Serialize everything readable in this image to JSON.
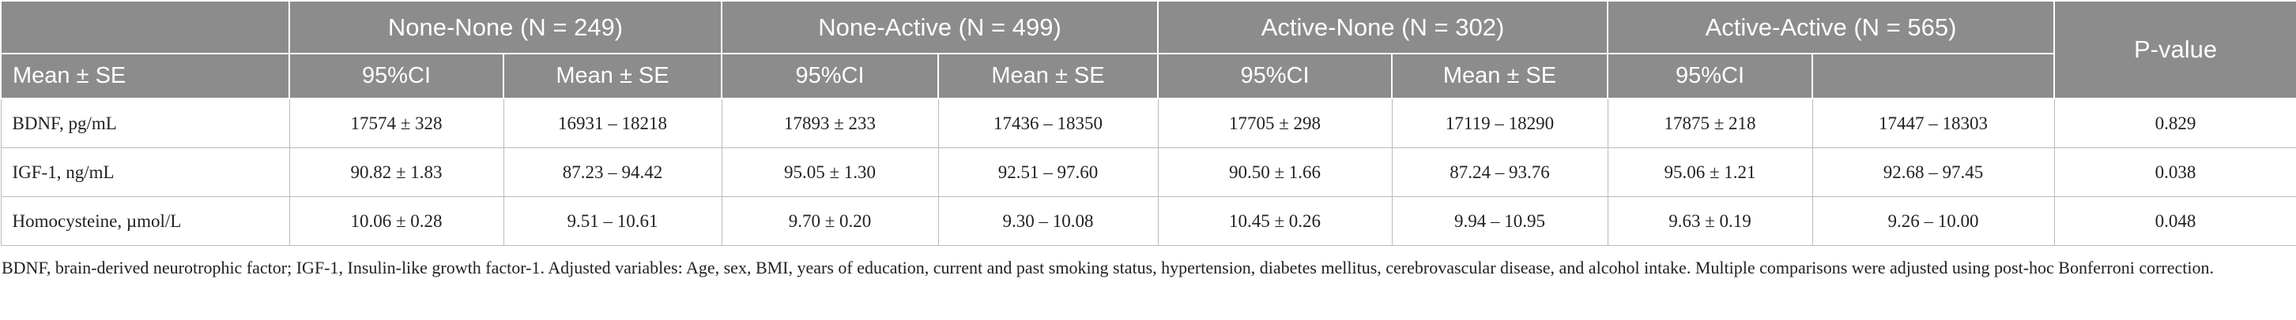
{
  "table": {
    "groups": [
      "None-None (N = 249)",
      "None-Active (N = 499)",
      "Active-None (N = 302)",
      "Active-Active (N = 565)"
    ],
    "p_header": "P-value",
    "row_header": "Mean ± SE",
    "subheaders": [
      "95%CI",
      "Mean ± SE",
      "95%CI",
      "Mean ± SE",
      "95%CI",
      "Mean ± SE",
      "95%CI"
    ],
    "rows": [
      [
        "BDNF, pg/mL",
        "17574 ± 328",
        "16931 – 18218",
        "17893 ± 233",
        "17436 – 18350",
        "17705 ± 298",
        "17119 – 18290",
        "17875 ± 218",
        "17447 – 18303",
        "0.829"
      ],
      [
        "IGF-1, ng/mL",
        "90.82 ± 1.83",
        "87.23 – 94.42",
        "95.05 ± 1.30",
        "92.51 – 97.60",
        "90.50 ± 1.66",
        "87.24 – 93.76",
        "95.06 ± 1.21",
        "92.68 – 97.45",
        "0.038"
      ],
      [
        "Homocysteine, µmol/L",
        "10.06 ± 0.28",
        "9.51 – 10.61",
        "9.70 ± 0.20",
        "9.30 – 10.08",
        "10.45 ± 0.26",
        "9.94 – 10.95",
        "9.63 ± 0.19",
        "9.26 – 10.00",
        "0.048"
      ]
    ]
  },
  "footnote": "BDNF, brain-derived neurotrophic factor; IGF-1, Insulin-like growth factor-1. Adjusted variables: Age, sex, BMI, years of education, current and past smoking status, hypertension, diabetes mellitus, cerebrovascular disease, and alcohol intake. Multiple comparisons were adjusted using post-hoc Bonferroni correction."
}
